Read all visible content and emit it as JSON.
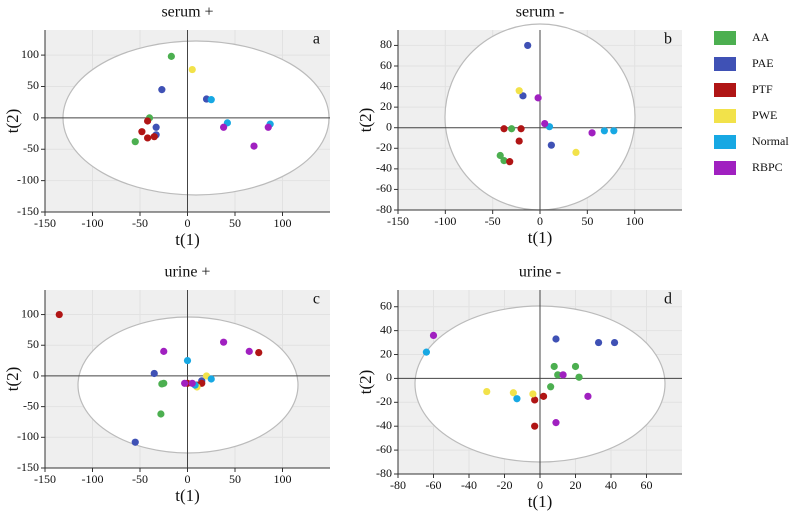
{
  "chart_data": [
    {
      "type": "scatter",
      "title": "serum +",
      "label": "a",
      "x_label": "t(1)",
      "y_label": "t(2)",
      "xlim": [
        -150,
        150
      ],
      "ylim": [
        -150,
        140
      ],
      "xticks": [
        -150,
        -100,
        -50,
        0,
        50,
        100
      ],
      "yticks": [
        -150,
        -100,
        -50,
        0,
        50,
        100
      ],
      "series": [
        {
          "name": "AA",
          "color": "#4caf50",
          "x": [
            -17,
            -40,
            -55
          ],
          "values": [
            98,
            0,
            -38
          ]
        },
        {
          "name": "PAE",
          "color": "#3f51b5",
          "x": [
            -27,
            -33,
            20,
            -33
          ],
          "values": [
            45,
            -15,
            30,
            -27
          ]
        },
        {
          "name": "PTF",
          "color": "#b01515",
          "x": [
            -48,
            -42,
            -35,
            -42
          ],
          "values": [
            -22,
            -32,
            -30,
            -5
          ]
        },
        {
          "name": "PWE",
          "color": "#f2e24a",
          "x": [
            5
          ],
          "values": [
            77
          ]
        },
        {
          "name": "Normal",
          "color": "#17a8e3",
          "x": [
            25,
            42,
            87
          ],
          "values": [
            29,
            -8,
            -10
          ]
        },
        {
          "name": "RBPC",
          "color": "#a020c0",
          "x": [
            38,
            70,
            85
          ],
          "values": [
            -15,
            -45,
            -15
          ]
        }
      ]
    },
    {
      "type": "scatter",
      "title": "serum -",
      "label": "b",
      "x_label": "t(1)",
      "y_label": "t(2)",
      "xlim": [
        -150,
        150
      ],
      "ylim": [
        -80,
        95
      ],
      "xticks": [
        -150,
        -100,
        -50,
        0,
        50,
        100
      ],
      "yticks": [
        -80,
        -60,
        -40,
        -20,
        0,
        20,
        40,
        60,
        80
      ],
      "series": [
        {
          "name": "AA",
          "color": "#4caf50",
          "x": [
            -42,
            -38,
            -30
          ],
          "values": [
            -27,
            -32,
            -1
          ]
        },
        {
          "name": "PAE",
          "color": "#3f51b5",
          "x": [
            -13,
            -18,
            12
          ],
          "values": [
            80,
            31,
            -17
          ]
        },
        {
          "name": "PTF",
          "color": "#b01515",
          "x": [
            -38,
            -20,
            -22,
            -32
          ],
          "values": [
            -1,
            -1,
            -13,
            -33
          ]
        },
        {
          "name": "PWE",
          "color": "#f2e24a",
          "x": [
            -22,
            38
          ],
          "values": [
            36,
            -24
          ]
        },
        {
          "name": "Normal",
          "color": "#17a8e3",
          "x": [
            10,
            68,
            78
          ],
          "values": [
            1,
            -3,
            -3
          ]
        },
        {
          "name": "RBPC",
          "color": "#a020c0",
          "x": [
            -2,
            5,
            55
          ],
          "values": [
            29,
            4,
            -5
          ]
        }
      ]
    },
    {
      "type": "scatter",
      "title": "urine +",
      "label": "c",
      "x_label": "t(1)",
      "y_label": "t(2)",
      "xlim": [
        -150,
        150
      ],
      "ylim": [
        -150,
        140
      ],
      "xticks": [
        -150,
        -100,
        -50,
        0,
        50,
        100
      ],
      "yticks": [
        -150,
        -100,
        -50,
        0,
        50,
        100
      ],
      "series": [
        {
          "name": "AA",
          "color": "#4caf50",
          "x": [
            -27,
            -25,
            -28
          ],
          "values": [
            -13,
            -12,
            -62
          ]
        },
        {
          "name": "PAE",
          "color": "#3f51b5",
          "x": [
            -35,
            -55,
            15
          ],
          "values": [
            4,
            -108,
            -8
          ]
        },
        {
          "name": "PTF",
          "color": "#b01515",
          "x": [
            -135,
            75,
            10,
            15,
            0
          ],
          "values": [
            100,
            38,
            -15,
            -12,
            -12
          ]
        },
        {
          "name": "PWE",
          "color": "#f2e24a",
          "x": [
            20,
            10
          ],
          "values": [
            0,
            -18
          ]
        },
        {
          "name": "Normal",
          "color": "#17a8e3",
          "x": [
            0,
            25,
            8
          ],
          "values": [
            25,
            -5,
            -15
          ]
        },
        {
          "name": "RBPC",
          "color": "#a020c0",
          "x": [
            -25,
            38,
            65,
            5,
            -3
          ],
          "values": [
            40,
            55,
            40,
            -12,
            -12
          ]
        }
      ]
    },
    {
      "type": "scatter",
      "title": "urine -",
      "label": "d",
      "x_label": "t(1)",
      "y_label": "t(2)",
      "xlim": [
        -80,
        80
      ],
      "ylim": [
        -80,
        74
      ],
      "xticks": [
        -80,
        -60,
        -40,
        -20,
        0,
        20,
        40,
        60
      ],
      "yticks": [
        -80,
        -60,
        -40,
        -20,
        0,
        20,
        40,
        60
      ],
      "series": [
        {
          "name": "AA",
          "color": "#4caf50",
          "x": [
            8,
            20,
            22,
            6,
            10
          ],
          "values": [
            10,
            10,
            1,
            -7,
            3
          ]
        },
        {
          "name": "PAE",
          "color": "#3f51b5",
          "x": [
            9,
            33,
            42
          ],
          "values": [
            33,
            30,
            30
          ]
        },
        {
          "name": "PTF",
          "color": "#b01515",
          "x": [
            -3,
            2,
            -3
          ],
          "values": [
            -40,
            -15,
            -18
          ]
        },
        {
          "name": "PWE",
          "color": "#f2e24a",
          "x": [
            -30,
            -15,
            -4
          ],
          "values": [
            -11,
            -12,
            -13
          ]
        },
        {
          "name": "Normal",
          "color": "#17a8e3",
          "x": [
            -64,
            -13
          ],
          "values": [
            22,
            -17
          ]
        },
        {
          "name": "RBPC",
          "color": "#a020c0",
          "x": [
            -60,
            13,
            9,
            27
          ],
          "values": [
            36,
            3,
            -37,
            -15
          ]
        }
      ]
    }
  ]
}
